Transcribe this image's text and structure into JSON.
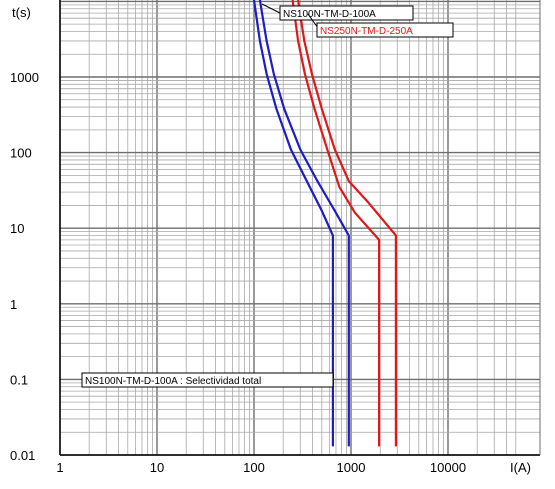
{
  "chart_data": {
    "type": "line",
    "title": "",
    "xlabel": "I(A)",
    "ylabel": "t(s)",
    "x_scale": "log",
    "y_scale": "log",
    "xlim": [
      1,
      55000
    ],
    "ylim": [
      0.01,
      20000
    ],
    "grid": true,
    "x_ticks": [
      "1",
      "10",
      "100",
      "1000",
      "10000"
    ],
    "y_ticks": [
      "0.01",
      "0.1",
      "1",
      "10",
      "100",
      "1000"
    ],
    "series": [
      {
        "group": "NS100N-TM-D-100A",
        "color": "#1c1cc8",
        "points": [
          [
            100,
            20000
          ],
          [
            115,
            3000
          ],
          [
            135,
            1100
          ],
          [
            170,
            380
          ],
          [
            240,
            110
          ],
          [
            350,
            42
          ],
          [
            500,
            17
          ],
          [
            650,
            8
          ],
          [
            650,
            0.013
          ]
        ]
      },
      {
        "group": "NS100N-TM-D-100A",
        "color": "#1c1cc8",
        "points": [
          [
            115,
            20000
          ],
          [
            135,
            3000
          ],
          [
            160,
            1100
          ],
          [
            205,
            380
          ],
          [
            300,
            110
          ],
          [
            450,
            42
          ],
          [
            680,
            17
          ],
          [
            950,
            8
          ],
          [
            950,
            0.013
          ]
        ]
      },
      {
        "group": "NS250N-TM-D-250A",
        "color": "#e01818",
        "points": [
          [
            250,
            20000
          ],
          [
            285,
            3000
          ],
          [
            335,
            1100
          ],
          [
            420,
            380
          ],
          [
            570,
            110
          ],
          [
            760,
            35
          ],
          [
            1100,
            16
          ],
          [
            1950,
            7
          ],
          [
            1950,
            0.013
          ]
        ]
      },
      {
        "group": "NS250N-TM-D-250A",
        "color": "#e01818",
        "points": [
          [
            285,
            20000
          ],
          [
            330,
            3000
          ],
          [
            395,
            1100
          ],
          [
            500,
            380
          ],
          [
            680,
            110
          ],
          [
            950,
            42
          ],
          [
            1500,
            22
          ],
          [
            2900,
            8
          ],
          [
            2900,
            0.013
          ]
        ]
      }
    ],
    "labels": [
      {
        "text": "NS100N-TM-D-100A",
        "color": "#000000"
      },
      {
        "text": "NS250N-TM-D-250A",
        "color": "#e01818"
      },
      {
        "text": "NS100N-TM-D-100A : Selectividad total",
        "color": "#000000"
      }
    ]
  }
}
